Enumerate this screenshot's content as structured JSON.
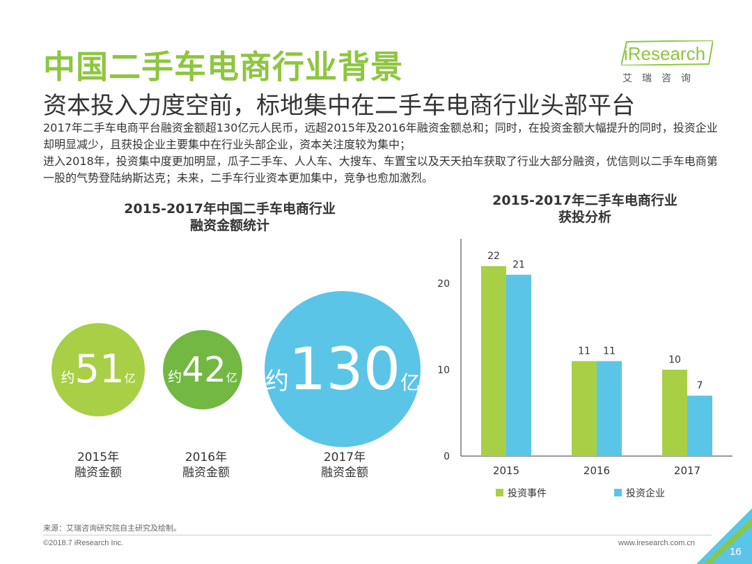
{
  "header": {
    "title": "中国二手车电商行业背景",
    "subtitle": "资本投入力度空前，标地集中在二手车电商行业头部平台",
    "paragraphs": [
      "2017年二手车电商平台融资金额超130亿元人民币，远超2015年及2016年融资金额总和；同时，在投资金额大幅提升的同时，投资企业却明显减少，且获投企业主要集中在行业头部企业，资本关注度较为集中；",
      "进入2018年，投资集中度更加明显，瓜子二手车、人人车、大搜车、车置宝以及天天拍车获取了行业大部分融资，优信则以二手车电商第一股的气势登陆纳斯达克；未来，二手车行业资本更加集中，竞争也愈加激烈。"
    ]
  },
  "logo": {
    "name": "iResearch",
    "sub": "艾瑞咨询"
  },
  "chart_data": [
    {
      "type": "bubble",
      "title_line1": "2015-2017年中国二手车电商行业",
      "title_line2": "融资金额统计",
      "prefix": "约",
      "unit": "亿",
      "items": [
        {
          "value": "51",
          "year": "2015年",
          "label": "融资金额",
          "color": "#a8cf45"
        },
        {
          "value": "42",
          "year": "2016年",
          "label": "融资金额",
          "color": "#72b843"
        },
        {
          "value": "130",
          "year": "2017年",
          "label": "融资金额",
          "color": "#5bc5e8"
        }
      ]
    },
    {
      "type": "bar",
      "title_line1": "2015-2017年二手车电商行业",
      "title_line2": "获投分析",
      "categories": [
        "2015",
        "2016",
        "2017"
      ],
      "series": [
        {
          "name": "投资事件",
          "values": [
            22,
            11,
            10
          ],
          "color": "#a8cf45"
        },
        {
          "name": "投资企业",
          "values": [
            21,
            11,
            7
          ],
          "color": "#5bc5e8"
        }
      ],
      "ylim": [
        0,
        25
      ],
      "yticks": [
        0,
        10,
        20
      ],
      "legend_position": "bottom-left"
    }
  ],
  "footer": {
    "source": "来源：艾瑞咨询研究院自主研究及绘制。",
    "copyright": "©2018.7 iResearch Inc.",
    "url": "www.iresearch.com.cn",
    "page": "16"
  }
}
